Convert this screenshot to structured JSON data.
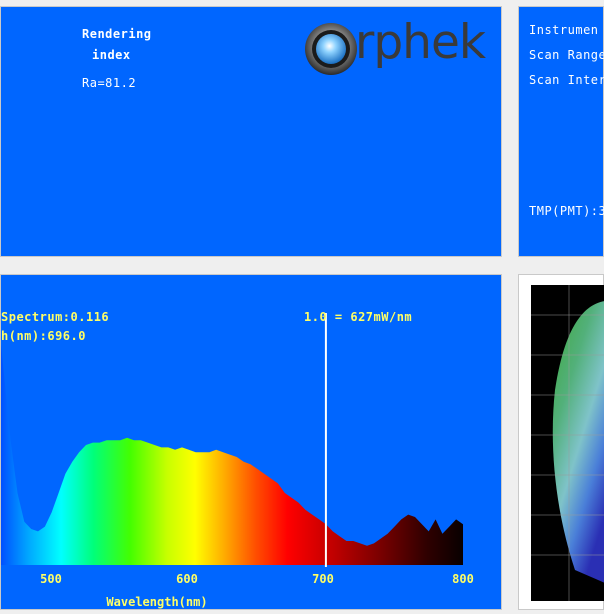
{
  "render": {
    "label_line1": "Rendering",
    "label_line2": "index",
    "ra_value": "Ra=81.2",
    "logo_text": "rphek"
  },
  "instrument": {
    "line1": "Instrumen",
    "line2": "Scan Range",
    "line3": "Scan Inter",
    "tmp": "TMP(PMT):3"
  },
  "spectrum": {
    "readout_spectrum": "Spectrum:0.116",
    "readout_peak": "h(nm):696.0",
    "scale_label": "1.0 = 627mW/nm",
    "xlabel": "Wavelength(nm)",
    "tick_500": "500",
    "tick_600": "600",
    "tick_700": "700",
    "tick_800": "800",
    "cursor_nm": 700
  },
  "colors": {
    "panel_blue": "#0066ff",
    "label_yellow": "#ffff66",
    "text_white": "#ffffff",
    "logo_grey": "#3a3a3a"
  },
  "chart_data": {
    "type": "area",
    "xlabel": "Wavelength(nm)",
    "ylabel": "",
    "title": "",
    "xlim": [
      463,
      800
    ],
    "ylim": [
      0,
      1
    ],
    "x": [
      463,
      470,
      475,
      480,
      485,
      490,
      495,
      500,
      505,
      510,
      515,
      520,
      525,
      530,
      535,
      540,
      545,
      550,
      555,
      560,
      565,
      570,
      575,
      580,
      585,
      590,
      595,
      600,
      605,
      610,
      615,
      620,
      625,
      630,
      635,
      640,
      645,
      650,
      655,
      660,
      665,
      670,
      675,
      680,
      685,
      690,
      695,
      700,
      705,
      710,
      715,
      720,
      725,
      730,
      735,
      740,
      745,
      750,
      755,
      760,
      765,
      770,
      775,
      780,
      785,
      790,
      795,
      800
    ],
    "values": [
      0.92,
      0.52,
      0.3,
      0.18,
      0.15,
      0.14,
      0.16,
      0.22,
      0.3,
      0.38,
      0.43,
      0.47,
      0.5,
      0.51,
      0.51,
      0.52,
      0.52,
      0.52,
      0.53,
      0.52,
      0.52,
      0.51,
      0.5,
      0.49,
      0.49,
      0.48,
      0.49,
      0.48,
      0.47,
      0.47,
      0.47,
      0.48,
      0.47,
      0.46,
      0.45,
      0.43,
      0.42,
      0.4,
      0.38,
      0.36,
      0.34,
      0.3,
      0.28,
      0.26,
      0.23,
      0.21,
      0.19,
      0.17,
      0.14,
      0.12,
      0.1,
      0.1,
      0.09,
      0.08,
      0.09,
      0.11,
      0.13,
      0.16,
      0.19,
      0.21,
      0.2,
      0.17,
      0.14,
      0.19,
      0.13,
      0.16,
      0.19,
      0.17
    ]
  }
}
